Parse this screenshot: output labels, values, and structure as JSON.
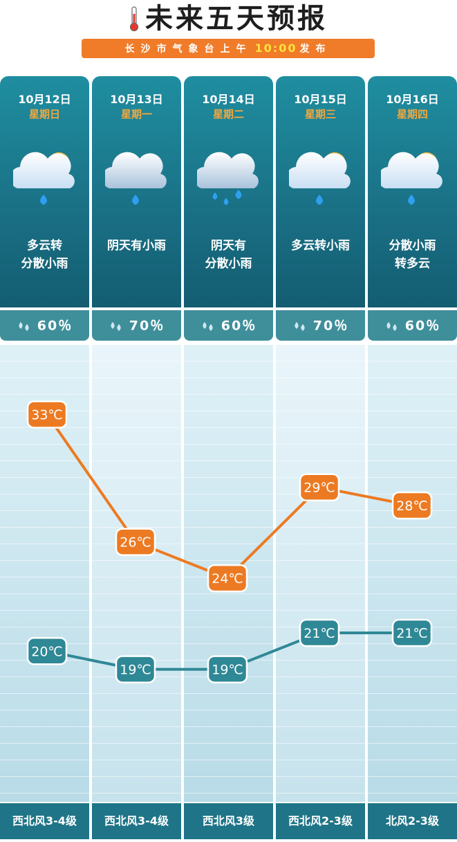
{
  "header": {
    "title": "未来五天预报",
    "subtitle_pre": "长沙市气象台上午",
    "subtitle_time": "10:00",
    "subtitle_post": "发布"
  },
  "days": [
    {
      "date": "10月12日",
      "weekday": "星期日",
      "icon": "partly-cloudy-rain-icon",
      "desc": [
        "多云转",
        "分散小雨"
      ],
      "rain": "60％",
      "wind": "西北风3-4级"
    },
    {
      "date": "10月13日",
      "weekday": "星期一",
      "icon": "overcast-rain-icon",
      "desc": [
        "阴天有小雨"
      ],
      "rain": "70％",
      "wind": "西北风3-4级"
    },
    {
      "date": "10月14日",
      "weekday": "星期二",
      "icon": "overcast-showers-icon",
      "desc": [
        "阴天有",
        "分散小雨"
      ],
      "rain": "60％",
      "wind": "西北风3级"
    },
    {
      "date": "10月15日",
      "weekday": "星期三",
      "icon": "partly-cloudy-rain-icon",
      "desc": [
        "多云转小雨"
      ],
      "rain": "70％",
      "wind": "西北风2-3级"
    },
    {
      "date": "10月16日",
      "weekday": "星期四",
      "icon": "partly-cloudy-rain-icon",
      "desc": [
        "分散小雨",
        "转多云"
      ],
      "rain": "60％",
      "wind": "北风2-3级"
    }
  ],
  "colors": {
    "high": "#ec7a22",
    "low": "#2f8895",
    "panel": "#1b7b8f"
  },
  "chart_data": {
    "type": "line",
    "categories": [
      "10月12日",
      "10月13日",
      "10月14日",
      "10月15日",
      "10月16日"
    ],
    "series": [
      {
        "values": [
          33,
          26,
          24,
          29,
          28
        ],
        "labels": [
          "33℃",
          "26℃",
          "24℃",
          "29℃",
          "28℃"
        ],
        "color": "#ec7a22"
      },
      {
        "values": [
          20,
          19,
          19,
          21,
          21
        ],
        "labels": [
          "20℃",
          "19℃",
          "19℃",
          "21℃",
          "21℃"
        ],
        "color": "#2f8895"
      }
    ],
    "title": "",
    "xlabel": "",
    "ylabel": "",
    "ylim": [
      14,
      35
    ],
    "grid": true,
    "legend": "none"
  }
}
